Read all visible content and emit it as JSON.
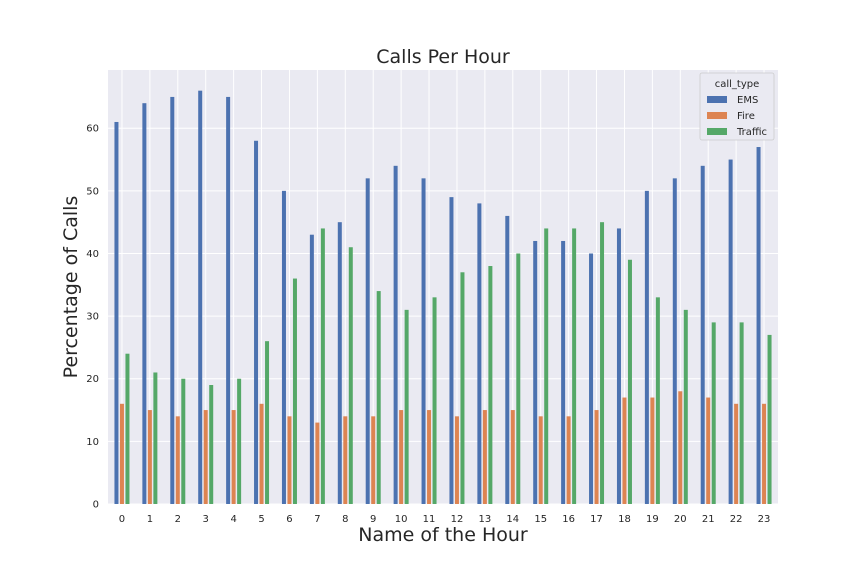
{
  "chart_data": {
    "type": "bar",
    "title": "Calls Per Hour",
    "xlabel": "Name of the Hour",
    "ylabel": "Percentage of Calls",
    "categories": [
      "0",
      "1",
      "2",
      "3",
      "4",
      "5",
      "6",
      "7",
      "8",
      "9",
      "10",
      "11",
      "12",
      "13",
      "14",
      "15",
      "16",
      "17",
      "18",
      "19",
      "20",
      "21",
      "22",
      "23"
    ],
    "series": [
      {
        "name": "EMS",
        "color": "#4c72b0",
        "values": [
          61,
          64,
          65,
          66,
          65,
          58,
          50,
          43,
          45,
          52,
          54,
          52,
          49,
          48,
          46,
          42,
          42,
          40,
          44,
          50,
          52,
          54,
          55,
          57
        ]
      },
      {
        "name": "Fire",
        "color": "#dd8452",
        "values": [
          16,
          15,
          14,
          15,
          15,
          16,
          14,
          13,
          14,
          14,
          15,
          15,
          14,
          15,
          15,
          14,
          14,
          15,
          17,
          17,
          18,
          17,
          16,
          16
        ]
      },
      {
        "name": "Traffic",
        "color": "#55a868",
        "values": [
          24,
          21,
          20,
          19,
          20,
          26,
          36,
          44,
          41,
          34,
          31,
          33,
          37,
          38,
          40,
          44,
          44,
          45,
          39,
          33,
          31,
          29,
          29,
          27
        ]
      }
    ],
    "yticks": [
      0,
      10,
      20,
      30,
      40,
      50,
      60
    ],
    "ylim": [
      0,
      69.3
    ],
    "grid": true,
    "legend": {
      "title": "call_type",
      "placement": "top-right"
    },
    "background": "#eaeaf2"
  }
}
